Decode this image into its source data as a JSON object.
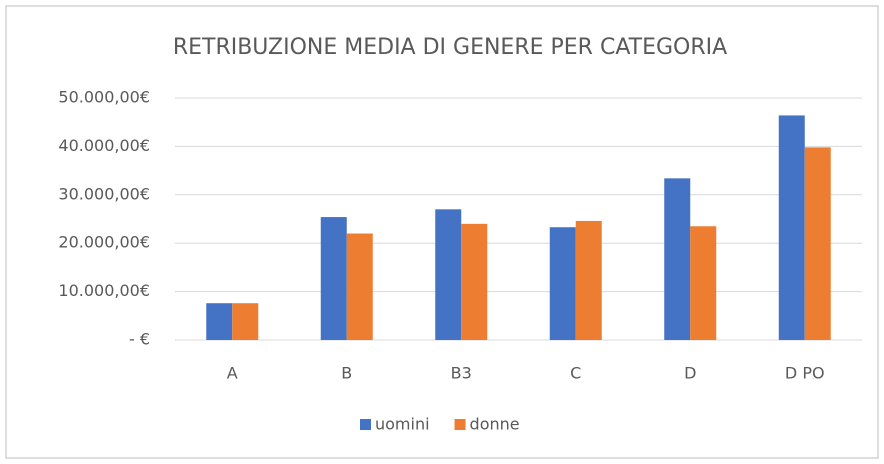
{
  "chart_data": {
    "type": "bar",
    "title": "RETRIBUZIONE MEDIA DI GENERE PER CATEGORIA",
    "categories": [
      "A",
      "B",
      "B3",
      "C",
      "D",
      "D PO"
    ],
    "series": [
      {
        "name": "uomini",
        "color": "#4472c4",
        "values": [
          7600,
          25400,
          27000,
          23300,
          33400,
          46400
        ]
      },
      {
        "name": "donne",
        "color": "#ed7d31",
        "values": [
          7600,
          22000,
          24000,
          24600,
          23500,
          39800
        ]
      }
    ],
    "ylim": [
      0,
      50000
    ],
    "yticks": [
      {
        "value": 0,
        "label": "-  €"
      },
      {
        "value": 10000,
        "label": "10.000,00€"
      },
      {
        "value": 20000,
        "label": "20.000,00€"
      },
      {
        "value": 30000,
        "label": "30.000,00€"
      },
      {
        "value": 40000,
        "label": "40.000,00€"
      },
      {
        "value": 50000,
        "label": "50.000,00€"
      }
    ],
    "grid": true,
    "legend": "bottom"
  }
}
